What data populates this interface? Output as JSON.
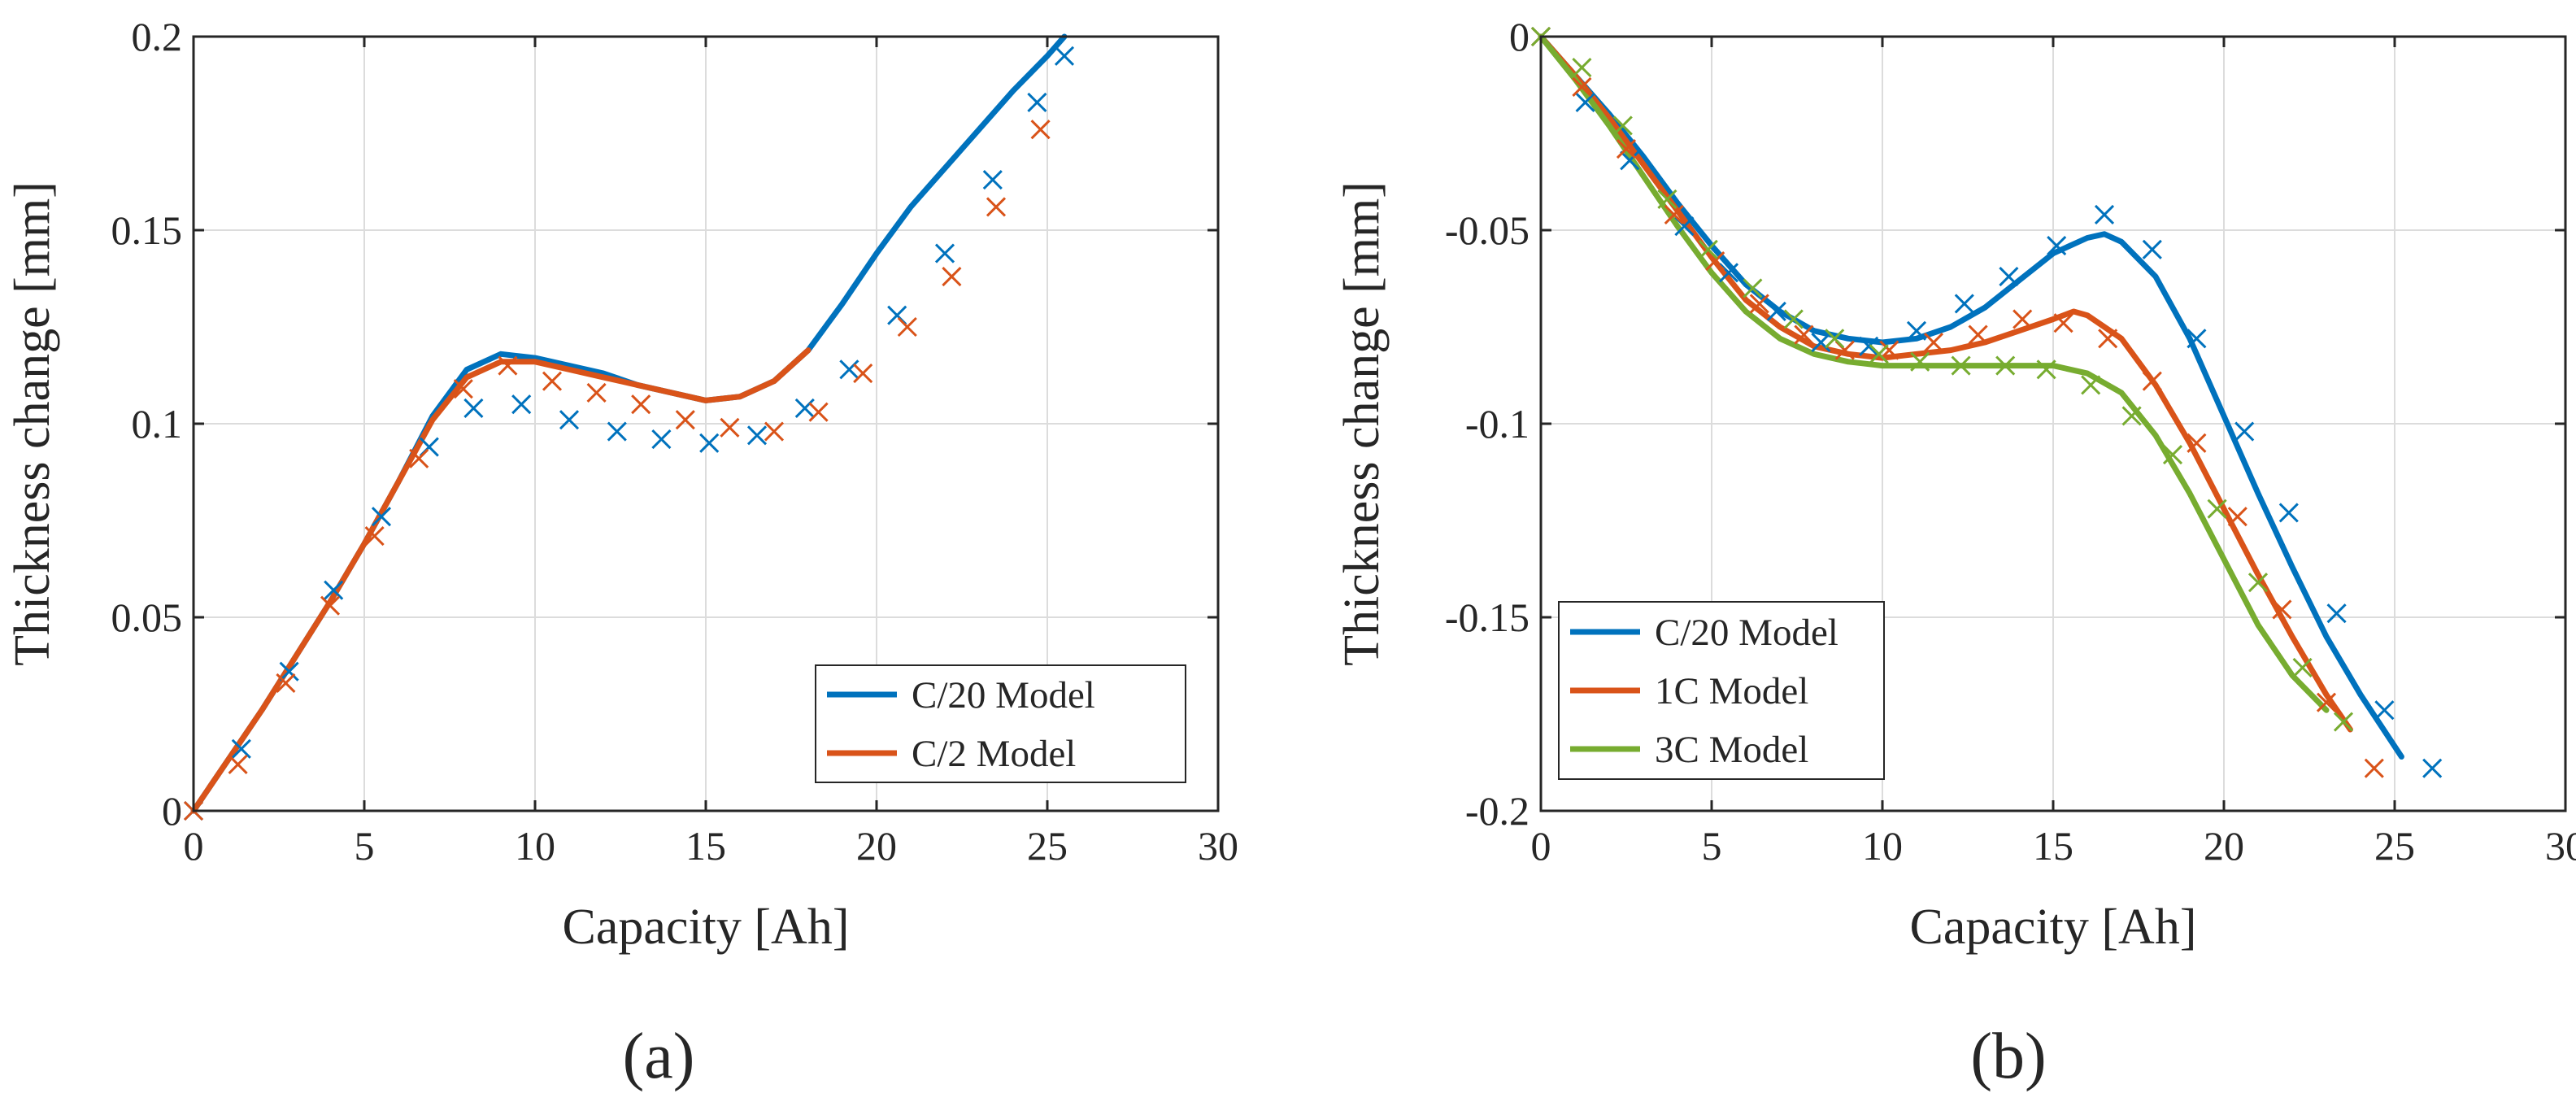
{
  "figure": {
    "panels": [
      "(a)",
      "(b)"
    ]
  },
  "colors": {
    "blue": "#0072BD",
    "orange": "#D95319",
    "green": "#77AC30",
    "grid": "#dcdcdc",
    "axis": "#262626"
  },
  "chart_data": [
    {
      "type": "line",
      "panel_label": "(a)",
      "title": "",
      "xlabel": "Capacity [Ah]",
      "ylabel": "Thickness change [mm]",
      "xlim": [
        0,
        30
      ],
      "ylim": [
        0,
        0.2
      ],
      "xticks": [
        0,
        5,
        10,
        15,
        20,
        25,
        30
      ],
      "xtick_labels": [
        "0",
        "5",
        "10",
        "15",
        "20",
        "25",
        "30"
      ],
      "yticks": [
        0,
        0.05,
        0.1,
        0.15,
        0.2
      ],
      "ytick_labels": [
        "0",
        "0.05",
        "0.1",
        "0.15",
        "0.2"
      ],
      "grid": true,
      "legend_position": "bottom-right",
      "series": [
        {
          "name": "C/20 Model",
          "color": "#0072BD",
          "style": "line",
          "x": [
            0,
            1,
            2,
            3,
            4,
            5,
            6,
            7,
            8,
            9,
            10,
            11,
            12,
            13,
            14,
            15,
            16,
            17,
            18,
            19,
            20,
            21,
            22,
            23,
            24,
            25,
            25.5
          ],
          "y": [
            0,
            0.013,
            0.026,
            0.04,
            0.054,
            0.069,
            0.085,
            0.102,
            0.114,
            0.118,
            0.117,
            0.115,
            0.113,
            0.11,
            0.108,
            0.106,
            0.107,
            0.111,
            0.119,
            0.131,
            0.144,
            0.156,
            0.166,
            0.176,
            0.186,
            0.195,
            0.2
          ]
        },
        {
          "name": "C/2 Model",
          "color": "#D95319",
          "style": "line",
          "x": [
            0,
            1,
            2,
            3,
            4,
            5,
            6,
            7,
            8,
            9,
            10,
            11,
            12,
            13,
            14,
            15,
            16,
            17,
            18
          ],
          "y": [
            0,
            0.013,
            0.026,
            0.04,
            0.054,
            0.069,
            0.085,
            0.101,
            0.112,
            0.116,
            0.116,
            0.114,
            0.112,
            0.11,
            0.108,
            0.106,
            0.107,
            0.111,
            0.119
          ]
        },
        {
          "name": "C/20 Experiment",
          "color": "#0072BD",
          "style": "marker",
          "legend": false,
          "x": [
            0,
            1.4,
            2.8,
            4.1,
            5.5,
            6.9,
            8.2,
            9.6,
            11.0,
            12.4,
            13.7,
            15.1,
            16.5,
            17.9,
            19.2,
            20.6,
            22.0,
            23.4,
            24.7,
            25.5
          ],
          "y": [
            0,
            0.016,
            0.036,
            0.057,
            0.076,
            0.094,
            0.104,
            0.105,
            0.101,
            0.098,
            0.096,
            0.095,
            0.097,
            0.104,
            0.114,
            0.128,
            0.144,
            0.163,
            0.183,
            0.195
          ]
        },
        {
          "name": "C/2 Experiment",
          "color": "#D95319",
          "style": "marker",
          "legend": false,
          "x": [
            0,
            1.3,
            2.7,
            4.0,
            5.3,
            6.6,
            7.9,
            9.2,
            10.5,
            11.8,
            13.1,
            14.4,
            15.7,
            17.0,
            18.3,
            19.6,
            20.9,
            22.2,
            23.5,
            24.8
          ],
          "y": [
            0,
            0.012,
            0.033,
            0.053,
            0.071,
            0.091,
            0.109,
            0.115,
            0.111,
            0.108,
            0.105,
            0.101,
            0.099,
            0.098,
            0.103,
            0.113,
            0.125,
            0.138,
            0.156,
            0.176
          ]
        }
      ]
    },
    {
      "type": "line",
      "panel_label": "(b)",
      "title": "",
      "xlabel": "Capacity [Ah]",
      "ylabel": "Thickness change [mm]",
      "xlim": [
        0,
        30
      ],
      "ylim": [
        -0.2,
        0
      ],
      "xticks": [
        0,
        5,
        10,
        15,
        20,
        25,
        30
      ],
      "xtick_labels": [
        "0",
        "5",
        "10",
        "15",
        "20",
        "25",
        "30"
      ],
      "yticks": [
        -0.2,
        -0.15,
        -0.1,
        -0.05,
        0
      ],
      "ytick_labels": [
        "-0.2",
        "-0.15",
        "-0.1",
        "-0.05",
        "0"
      ],
      "grid": true,
      "legend_position": "bottom-left",
      "series": [
        {
          "name": "C/20 Model",
          "color": "#0072BD",
          "style": "line",
          "x": [
            0,
            1,
            2,
            3,
            4,
            5,
            6,
            7,
            8,
            9,
            10,
            11,
            12,
            13,
            14,
            15,
            16,
            16.5,
            17,
            18,
            19,
            20,
            21,
            22,
            23,
            24,
            25.2
          ],
          "y": [
            0,
            -0.01,
            -0.02,
            -0.031,
            -0.043,
            -0.054,
            -0.064,
            -0.071,
            -0.076,
            -0.078,
            -0.079,
            -0.078,
            -0.075,
            -0.07,
            -0.063,
            -0.056,
            -0.052,
            -0.051,
            -0.053,
            -0.062,
            -0.078,
            -0.098,
            -0.118,
            -0.137,
            -0.155,
            -0.17,
            -0.186
          ]
        },
        {
          "name": "1C Model",
          "color": "#D95319",
          "style": "line",
          "x": [
            0,
            1,
            2,
            3,
            4,
            5,
            6,
            7,
            8,
            9,
            10,
            11,
            12,
            13,
            14,
            15,
            15.6,
            16,
            17,
            18,
            19,
            20,
            21,
            22,
            23,
            23.7
          ],
          "y": [
            0,
            -0.01,
            -0.021,
            -0.033,
            -0.045,
            -0.057,
            -0.068,
            -0.075,
            -0.08,
            -0.082,
            -0.083,
            -0.082,
            -0.081,
            -0.079,
            -0.076,
            -0.073,
            -0.071,
            -0.072,
            -0.078,
            -0.09,
            -0.105,
            -0.122,
            -0.139,
            -0.155,
            -0.17,
            -0.179
          ]
        },
        {
          "name": "3C Model",
          "color": "#77AC30",
          "style": "line",
          "x": [
            0,
            1,
            2,
            3,
            4,
            5,
            6,
            7,
            8,
            9,
            10,
            11,
            12,
            13,
            14,
            15,
            16,
            17,
            18,
            19,
            20,
            21,
            22,
            23
          ],
          "y": [
            0,
            -0.011,
            -0.023,
            -0.036,
            -0.049,
            -0.061,
            -0.071,
            -0.078,
            -0.082,
            -0.084,
            -0.085,
            -0.085,
            -0.085,
            -0.085,
            -0.085,
            -0.085,
            -0.087,
            -0.092,
            -0.103,
            -0.118,
            -0.135,
            -0.152,
            -0.165,
            -0.174
          ]
        },
        {
          "name": "C/20 Experiment",
          "color": "#0072BD",
          "style": "marker",
          "legend": false,
          "x": [
            0,
            1.3,
            2.6,
            4.2,
            5.5,
            6.9,
            8.2,
            9.6,
            11.0,
            12.4,
            13.7,
            15.1,
            16.5,
            17.9,
            19.2,
            20.6,
            21.9,
            23.3,
            24.7,
            26.1
          ],
          "y": [
            0,
            -0.017,
            -0.032,
            -0.049,
            -0.061,
            -0.071,
            -0.079,
            -0.08,
            -0.076,
            -0.069,
            -0.062,
            -0.054,
            -0.046,
            -0.055,
            -0.078,
            -0.102,
            -0.123,
            -0.149,
            -0.174,
            -0.189
          ]
        },
        {
          "name": "1C Experiment",
          "color": "#D95319",
          "style": "marker",
          "legend": false,
          "x": [
            0,
            1.2,
            2.5,
            3.9,
            5.1,
            6.4,
            7.7,
            8.9,
            10.2,
            11.5,
            12.8,
            14.1,
            15.3,
            16.6,
            17.9,
            19.2,
            20.4,
            21.7,
            23.0,
            24.4
          ],
          "y": [
            0,
            -0.013,
            -0.029,
            -0.046,
            -0.058,
            -0.069,
            -0.077,
            -0.081,
            -0.081,
            -0.079,
            -0.077,
            -0.073,
            -0.074,
            -0.078,
            -0.089,
            -0.105,
            -0.124,
            -0.148,
            -0.172,
            -0.189
          ]
        },
        {
          "name": "3C Experiment",
          "color": "#77AC30",
          "style": "marker",
          "legend": false,
          "x": [
            0,
            1.2,
            2.4,
            3.7,
            4.9,
            6.2,
            7.4,
            8.6,
            9.9,
            11.1,
            12.3,
            13.6,
            14.8,
            16.1,
            17.3,
            18.5,
            19.8,
            21.0,
            22.3,
            23.5
          ],
          "y": [
            0,
            -0.008,
            -0.023,
            -0.042,
            -0.055,
            -0.065,
            -0.073,
            -0.078,
            -0.082,
            -0.084,
            -0.085,
            -0.085,
            -0.086,
            -0.09,
            -0.098,
            -0.108,
            -0.122,
            -0.141,
            -0.163,
            -0.177
          ]
        }
      ]
    }
  ]
}
